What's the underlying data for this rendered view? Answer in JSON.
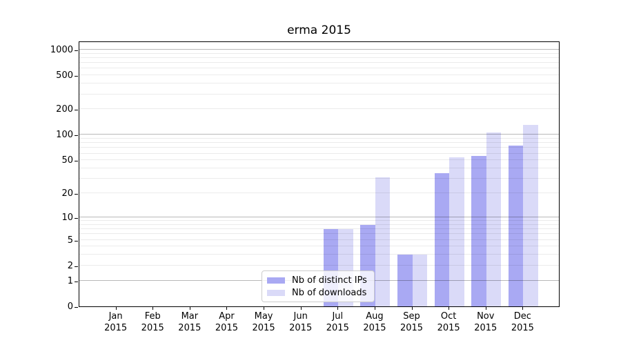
{
  "chart_data": {
    "type": "bar",
    "title": "erma 2015",
    "x_axis": {
      "months": [
        "Jan",
        "Feb",
        "Mar",
        "Apr",
        "May",
        "Jun",
        "Jul",
        "Aug",
        "Sep",
        "Oct",
        "Nov",
        "Dec"
      ],
      "year": "2015"
    },
    "y_axis": {
      "scale": "log1p",
      "ticks": [
        1000,
        500,
        200,
        100,
        50,
        20,
        10,
        5,
        2,
        1,
        0
      ],
      "range": [
        0,
        1250
      ],
      "grid": "on"
    },
    "series": [
      {
        "name": "Nb of distinct IPs",
        "color": "#a9a9f3",
        "values": [
          0,
          0,
          0,
          0,
          0,
          0,
          7,
          8,
          3,
          35,
          56,
          75
        ]
      },
      {
        "name": "Nb of downloads",
        "color": "#dadaf8",
        "values": [
          0,
          0,
          0,
          0,
          0,
          0,
          7,
          31,
          3,
          54,
          107,
          130
        ]
      }
    ],
    "legend": {
      "position": "bottom-center",
      "entries": [
        "Nb of distinct IPs",
        "Nb of downloads"
      ]
    }
  }
}
